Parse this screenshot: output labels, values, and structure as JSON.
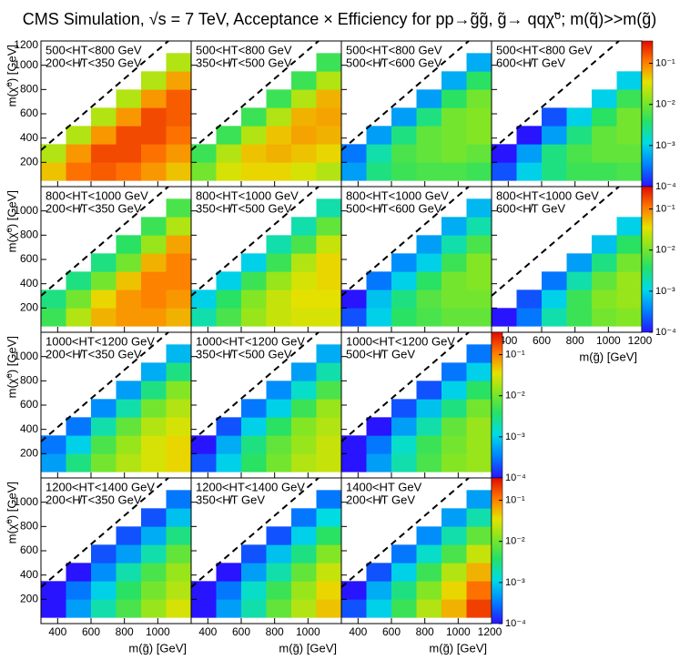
{
  "chart_data": {
    "type": "heatmap",
    "title": "CMS Simulation, √s = 7 TeV, Acceptance × Efficiency for pp→g̃g̃, g̃→ qqχ̃⁰; m(q̃)>>m(g̃)",
    "xlabel": "m(g̃) [GeV]",
    "ylabel": "m(χ̃⁰) [GeV]",
    "xlim": [
      300,
      1200
    ],
    "ylim": [
      0,
      1200
    ],
    "xticks": [
      400,
      600,
      800,
      1000,
      1200
    ],
    "yticks": [
      200,
      400,
      600,
      800,
      1000,
      1200
    ],
    "xbins": [
      300,
      450,
      600,
      750,
      900,
      1050,
      1200
    ],
    "ybins": [
      50,
      200,
      350,
      500,
      650,
      800,
      950,
      1100
    ],
    "zlim": [
      0.0001,
      0.35
    ],
    "zlog": true,
    "zticks": [
      {
        "value": 0.0001,
        "label": "10⁻⁴"
      },
      {
        "value": 0.001,
        "label": "10⁻³"
      },
      {
        "value": 0.01,
        "label": "10⁻²"
      },
      {
        "value": 0.1,
        "label": "10⁻¹"
      }
    ],
    "panels": [
      {
        "labels": [
          "500<HT<800 GeV",
          "200<H̸T<350 GeV"
        ],
        "z": [
          [
            0.05,
            0.12,
            0.15,
            0.12,
            0.08,
            0.05
          ],
          [
            0.02,
            0.08,
            0.18,
            0.18,
            0.12,
            0.08
          ],
          [
            null,
            0.02,
            0.08,
            0.18,
            0.18,
            0.12
          ],
          [
            null,
            null,
            0.02,
            0.08,
            0.18,
            0.15
          ],
          [
            null,
            null,
            null,
            0.02,
            0.08,
            0.15
          ],
          [
            null,
            null,
            null,
            null,
            0.02,
            0.07
          ],
          [
            null,
            null,
            null,
            null,
            null,
            0.02
          ]
        ]
      },
      {
        "labels": [
          "500<HT<800 GeV",
          "350<H̸T<500 GeV"
        ],
        "z": [
          [
            0.01,
            0.03,
            0.04,
            0.04,
            0.03,
            0.02
          ],
          [
            0.005,
            0.02,
            0.05,
            0.06,
            0.05,
            0.04
          ],
          [
            null,
            0.005,
            0.02,
            0.05,
            0.07,
            0.06
          ],
          [
            null,
            null,
            0.005,
            0.02,
            0.06,
            0.07
          ],
          [
            null,
            null,
            null,
            0.005,
            0.02,
            0.06
          ],
          [
            null,
            null,
            null,
            null,
            0.005,
            0.02
          ],
          [
            null,
            null,
            null,
            null,
            null,
            0.005
          ]
        ]
      },
      {
        "labels": [
          "500<HT<800 GeV",
          "500<H̸T<600 GeV"
        ],
        "z": [
          [
            0.0005,
            0.003,
            0.005,
            0.006,
            0.006,
            0.005
          ],
          [
            0.0003,
            0.002,
            0.006,
            0.008,
            0.01,
            0.008
          ],
          [
            null,
            0.0005,
            0.003,
            0.008,
            0.01,
            0.012
          ],
          [
            null,
            null,
            0.0005,
            0.003,
            0.01,
            0.012
          ],
          [
            null,
            null,
            null,
            0.0005,
            0.004,
            0.01
          ],
          [
            null,
            null,
            null,
            null,
            0.0006,
            0.004
          ],
          [
            null,
            null,
            null,
            null,
            null,
            0.0006
          ]
        ]
      },
      {
        "labels": [
          "500<HT<800 GeV",
          "600<H̸T GeV"
        ],
        "z": [
          [
            0.0002,
            0.001,
            0.003,
            0.005,
            0.005,
            0.006
          ],
          [
            0.0001,
            0.0005,
            0.003,
            0.006,
            0.008,
            0.008
          ],
          [
            null,
            0.0001,
            0.0005,
            0.003,
            0.008,
            0.01
          ],
          [
            null,
            null,
            0.0002,
            0.001,
            0.004,
            0.01
          ],
          [
            null,
            null,
            null,
            null,
            0.001,
            0.005
          ],
          [
            null,
            null,
            null,
            null,
            null,
            0.001
          ],
          [
            null,
            null,
            null,
            null,
            null,
            null
          ]
        ]
      },
      {
        "labels": [
          "800<HT<1000 GeV",
          "200<H̸T<350 GeV"
        ],
        "z": [
          [
            0.005,
            0.02,
            0.06,
            0.08,
            0.08,
            0.06
          ],
          [
            0.003,
            0.01,
            0.04,
            0.08,
            0.1,
            0.08
          ],
          [
            null,
            0.003,
            0.01,
            0.05,
            0.1,
            0.1
          ],
          [
            null,
            null,
            0.003,
            0.01,
            0.06,
            0.1
          ],
          [
            null,
            null,
            null,
            0.004,
            0.015,
            0.07
          ],
          [
            null,
            null,
            null,
            null,
            0.005,
            0.02
          ],
          [
            null,
            null,
            null,
            null,
            null,
            0.006
          ]
        ]
      },
      {
        "labels": [
          "800<HT<1000 GeV",
          "350<H̸T<500 GeV"
        ],
        "z": [
          [
            0.002,
            0.006,
            0.015,
            0.025,
            0.03,
            0.03
          ],
          [
            0.001,
            0.004,
            0.012,
            0.025,
            0.035,
            0.035
          ],
          [
            null,
            0.001,
            0.005,
            0.015,
            0.03,
            0.04
          ],
          [
            null,
            null,
            0.001,
            0.005,
            0.02,
            0.04
          ],
          [
            null,
            null,
            null,
            0.002,
            0.006,
            0.025
          ],
          [
            null,
            null,
            null,
            null,
            0.002,
            0.008
          ],
          [
            null,
            null,
            null,
            null,
            null,
            0.002
          ]
        ]
      },
      {
        "labels": [
          "800<HT<1000 GeV",
          "500<H̸T<600 GeV"
        ],
        "z": [
          [
            0.0002,
            0.001,
            0.004,
            0.006,
            0.008,
            0.008
          ],
          [
            0.0001,
            0.0008,
            0.003,
            0.007,
            0.01,
            0.01
          ],
          [
            null,
            0.0003,
            0.001,
            0.004,
            0.01,
            0.012
          ],
          [
            null,
            null,
            0.0004,
            0.001,
            0.005,
            0.012
          ],
          [
            null,
            null,
            null,
            0.0005,
            0.002,
            0.006
          ],
          [
            null,
            null,
            null,
            null,
            0.0006,
            0.002
          ],
          [
            null,
            null,
            null,
            null,
            null,
            0.0007
          ]
        ]
      },
      {
        "labels": [
          "800<HT<1000 GeV",
          "600<H̸T GeV"
        ],
        "z": [
          [
            0.0001,
            0.0003,
            0.002,
            0.005,
            0.01,
            0.012
          ],
          [
            null,
            0.0002,
            0.001,
            0.005,
            0.012,
            0.015
          ],
          [
            null,
            null,
            0.0003,
            0.002,
            0.008,
            0.015
          ],
          [
            null,
            null,
            null,
            0.0005,
            0.003,
            0.01
          ],
          [
            null,
            null,
            null,
            null,
            0.0008,
            0.004
          ],
          [
            null,
            null,
            null,
            null,
            null,
            0.001
          ],
          [
            null,
            null,
            null,
            null,
            null,
            null
          ]
        ]
      },
      {
        "labels": [
          "1000<HT<1200 GeV",
          "200<H̸T<350 GeV"
        ],
        "z": [
          [
            0.0005,
            0.003,
            0.01,
            0.02,
            0.03,
            0.04
          ],
          [
            0.0003,
            0.001,
            0.006,
            0.015,
            0.03,
            0.04
          ],
          [
            null,
            0.0003,
            0.002,
            0.008,
            0.02,
            0.03
          ],
          [
            null,
            null,
            0.0004,
            0.002,
            0.01,
            0.02
          ],
          [
            null,
            null,
            null,
            0.0005,
            0.003,
            0.012
          ],
          [
            null,
            null,
            null,
            null,
            0.0006,
            0.003
          ],
          [
            null,
            null,
            null,
            null,
            null,
            0.0007
          ]
        ]
      },
      {
        "labels": [
          "1000<HT<1200 GeV",
          "350<H̸T<500 GeV"
        ],
        "z": [
          [
            0.0002,
            0.001,
            0.004,
            0.01,
            0.02,
            0.025
          ],
          [
            0.0001,
            0.0006,
            0.003,
            0.008,
            0.015,
            0.025
          ],
          [
            null,
            0.0002,
            0.001,
            0.004,
            0.012,
            0.02
          ],
          [
            null,
            null,
            0.0003,
            0.001,
            0.005,
            0.015
          ],
          [
            null,
            null,
            null,
            0.0004,
            0.0015,
            0.006
          ],
          [
            null,
            null,
            null,
            null,
            0.0005,
            0.002
          ],
          [
            null,
            null,
            null,
            null,
            null,
            0.0006
          ]
        ]
      },
      {
        "labels": [
          "1000<HT<1200 GeV",
          "500<H̸T GeV"
        ],
        "z": [
          [
            0.0001,
            0.0005,
            0.002,
            0.006,
            0.012,
            0.015
          ],
          [
            0.0001,
            0.0003,
            0.0015,
            0.005,
            0.01,
            0.015
          ],
          [
            null,
            0.0001,
            0.0005,
            0.002,
            0.008,
            0.015
          ],
          [
            null,
            null,
            0.0002,
            0.0008,
            0.003,
            0.01
          ],
          [
            null,
            null,
            null,
            0.0002,
            0.001,
            0.004
          ],
          [
            null,
            null,
            null,
            null,
            0.0003,
            0.001
          ],
          [
            null,
            null,
            null,
            null,
            null,
            0.0003
          ]
        ]
      },
      {
        "labels": [
          "1200<HT<1400 GeV",
          "200<H̸T<350 GeV"
        ],
        "z": [
          [
            0.0001,
            0.0005,
            0.002,
            0.006,
            0.015,
            0.03
          ],
          [
            0.0001,
            0.0003,
            0.001,
            0.004,
            0.01,
            0.02
          ],
          [
            null,
            0.0001,
            0.0004,
            0.002,
            0.006,
            0.015
          ],
          [
            null,
            null,
            0.0002,
            0.0005,
            0.002,
            0.008
          ],
          [
            null,
            null,
            null,
            0.0002,
            0.0006,
            0.003
          ],
          [
            null,
            null,
            null,
            null,
            0.0002,
            0.0008
          ],
          [
            null,
            null,
            null,
            null,
            null,
            0.0003
          ]
        ]
      },
      {
        "labels": [
          "1200<HT<1400 GeV",
          "350<H̸T GeV"
        ],
        "z": [
          [
            0.0001,
            0.0005,
            0.002,
            0.008,
            0.02,
            0.05
          ],
          [
            0.0001,
            0.0003,
            0.0015,
            0.005,
            0.015,
            0.04
          ],
          [
            null,
            0.0001,
            0.0005,
            0.002,
            0.008,
            0.025
          ],
          [
            null,
            null,
            0.0002,
            0.0008,
            0.003,
            0.012
          ],
          [
            null,
            null,
            null,
            0.0002,
            0.001,
            0.004
          ],
          [
            null,
            null,
            null,
            null,
            0.0003,
            0.0012
          ],
          [
            null,
            null,
            null,
            null,
            null,
            0.0003
          ]
        ]
      },
      {
        "labels": [
          "1400<HT GeV",
          "200<H̸T GeV"
        ],
        "z": [
          [
            0.0002,
            0.001,
            0.005,
            0.02,
            0.06,
            0.2
          ],
          [
            0.0001,
            0.0006,
            0.003,
            0.012,
            0.04,
            0.12
          ],
          [
            null,
            0.0002,
            0.001,
            0.005,
            0.02,
            0.06
          ],
          [
            null,
            null,
            0.0003,
            0.0015,
            0.006,
            0.025
          ],
          [
            null,
            null,
            null,
            0.0004,
            0.002,
            0.008
          ],
          [
            null,
            null,
            null,
            null,
            0.0005,
            0.002
          ],
          [
            null,
            null,
            null,
            null,
            null,
            0.0005
          ]
        ]
      }
    ]
  }
}
